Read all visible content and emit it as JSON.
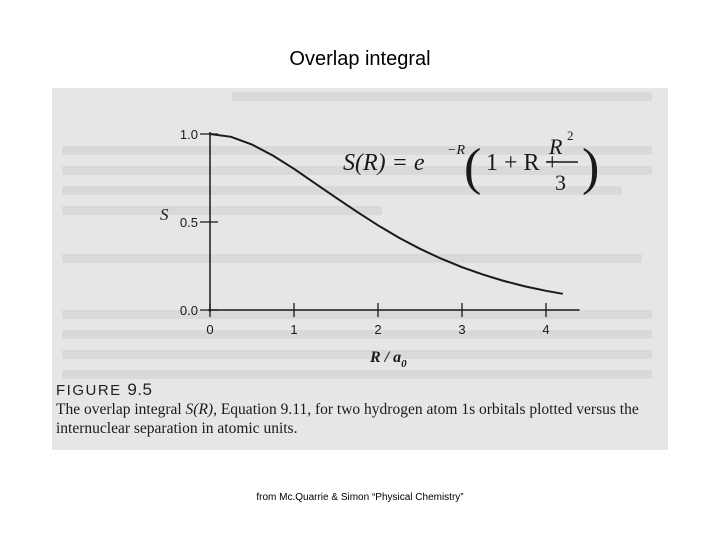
{
  "slide": {
    "title": "Overlap integral",
    "source_note": "from Mc.Quarrie & Simon “Physical Chemistry”"
  },
  "figure": {
    "label_word": "FIGURE",
    "label_number": "9.5",
    "caption_before": "The overlap integral ",
    "caption_symbol": "S(R)",
    "caption_after": ", Equation 9.11, for two hydrogen atom 1s orbitals plotted versus the internuclear separation in atomic units."
  },
  "equation": {
    "lhs": "S(R) = e",
    "exponent": "−R",
    "middle": "1 + R +",
    "numerator": "R",
    "numerator_power": "2",
    "denominator": "3"
  },
  "colors": {
    "scan_background": "#e6e6e6",
    "ink": "#1a1a1a"
  },
  "chart_data": {
    "type": "line",
    "title": "",
    "xlabel": "R / a",
    "xlabel_subscript": "0",
    "ylabel": "S",
    "xlim": [
      0,
      4.4
    ],
    "ylim": [
      0,
      1.0
    ],
    "x_ticks": [
      "0",
      "1",
      "2",
      "3",
      "4"
    ],
    "y_ticks": [
      "0.0",
      "0.5",
      "1.0"
    ],
    "grid": false,
    "series": [
      {
        "x": [
          0,
          0.25,
          0.5,
          0.75,
          1.0,
          1.25,
          1.5,
          1.75,
          2.0,
          2.25,
          2.5,
          2.75,
          3.0,
          3.25,
          3.5,
          3.75,
          4.0,
          4.2
        ],
        "y": [
          1.0,
          0.984,
          0.94,
          0.877,
          0.802,
          0.72,
          0.638,
          0.558,
          0.481,
          0.411,
          0.348,
          0.292,
          0.243,
          0.201,
          0.165,
          0.134,
          0.109,
          0.092
        ]
      }
    ]
  }
}
